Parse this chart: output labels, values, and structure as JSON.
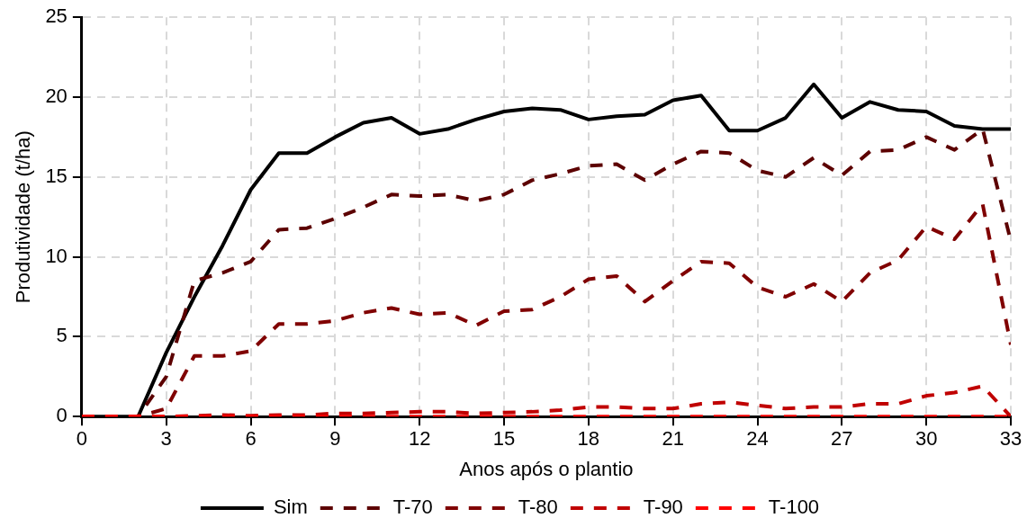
{
  "chart_data": {
    "type": "line",
    "xlabel": "Anos após o plantio",
    "ylabel": "Produtividade (t/ha)",
    "x": [
      0,
      1,
      2,
      3,
      4,
      5,
      6,
      7,
      8,
      9,
      10,
      11,
      12,
      13,
      14,
      15,
      16,
      17,
      18,
      19,
      20,
      21,
      22,
      23,
      24,
      25,
      26,
      27,
      28,
      29,
      30,
      31,
      32,
      33
    ],
    "xlim": [
      0,
      33
    ],
    "xticks": [
      0,
      3,
      6,
      9,
      12,
      15,
      18,
      21,
      24,
      27,
      30,
      33
    ],
    "ylim": [
      0,
      25
    ],
    "yticks": [
      0,
      5,
      10,
      15,
      20,
      25
    ],
    "grid": true,
    "legend": "bottom",
    "marker": "none",
    "series": [
      {
        "name": "Sim",
        "color": "#000000",
        "line_style": "solid",
        "values": [
          0,
          0,
          0,
          4,
          7.5,
          10.7,
          14.2,
          16.5,
          16.5,
          17.5,
          18.4,
          18.7,
          17.7,
          18,
          18.6,
          19.1,
          19.3,
          19.2,
          18.6,
          18.8,
          18.9,
          19.8,
          20.1,
          17.9,
          17.9,
          18.7,
          20.8,
          18.7,
          19.7,
          19.2,
          19.1,
          18.2,
          18,
          18
        ]
      },
      {
        "name": "T-70",
        "color": "#5c0000",
        "line_style": "dashed",
        "values": [
          0,
          0,
          0,
          2.5,
          8.5,
          9,
          9.7,
          11.7,
          11.8,
          12.4,
          13.1,
          13.9,
          13.8,
          13.9,
          13.5,
          13.9,
          14.8,
          15.2,
          15.7,
          15.8,
          14.8,
          15.8,
          16.6,
          16.5,
          15.4,
          15,
          16.2,
          15.1,
          16.6,
          16.7,
          17.5,
          16.7,
          18,
          11
        ]
      },
      {
        "name": "T-80",
        "color": "#800000",
        "line_style": "dashed",
        "values": [
          0,
          0,
          0,
          0.5,
          3.8,
          3.8,
          4.1,
          5.8,
          5.8,
          6,
          6.5,
          6.8,
          6.4,
          6.5,
          5.7,
          6.6,
          6.7,
          7.5,
          8.6,
          8.8,
          7.2,
          8.5,
          9.7,
          9.6,
          8.1,
          7.5,
          8.3,
          7.2,
          9,
          9.8,
          11.9,
          11.1,
          13.3,
          4.5
        ]
      },
      {
        "name": "T-90",
        "color": "#c00000",
        "line_style": "dashed",
        "values": [
          0,
          0,
          0,
          0,
          0.05,
          0.1,
          0.05,
          0.1,
          0.1,
          0.2,
          0.2,
          0.25,
          0.3,
          0.3,
          0.2,
          0.25,
          0.3,
          0.4,
          0.6,
          0.6,
          0.5,
          0.5,
          0.8,
          0.9,
          0.7,
          0.5,
          0.6,
          0.6,
          0.8,
          0.8,
          1.3,
          1.5,
          1.9,
          0
        ]
      },
      {
        "name": "T-100",
        "color": "#ff0000",
        "line_style": "dashed",
        "values": [
          0,
          0,
          0,
          0,
          0,
          0,
          0,
          0,
          0,
          0,
          0,
          0,
          0,
          0,
          0,
          0,
          0,
          0,
          0,
          0,
          0,
          0,
          0,
          0,
          0,
          0,
          0,
          0,
          0,
          0,
          0,
          0,
          0,
          0
        ]
      }
    ]
  }
}
